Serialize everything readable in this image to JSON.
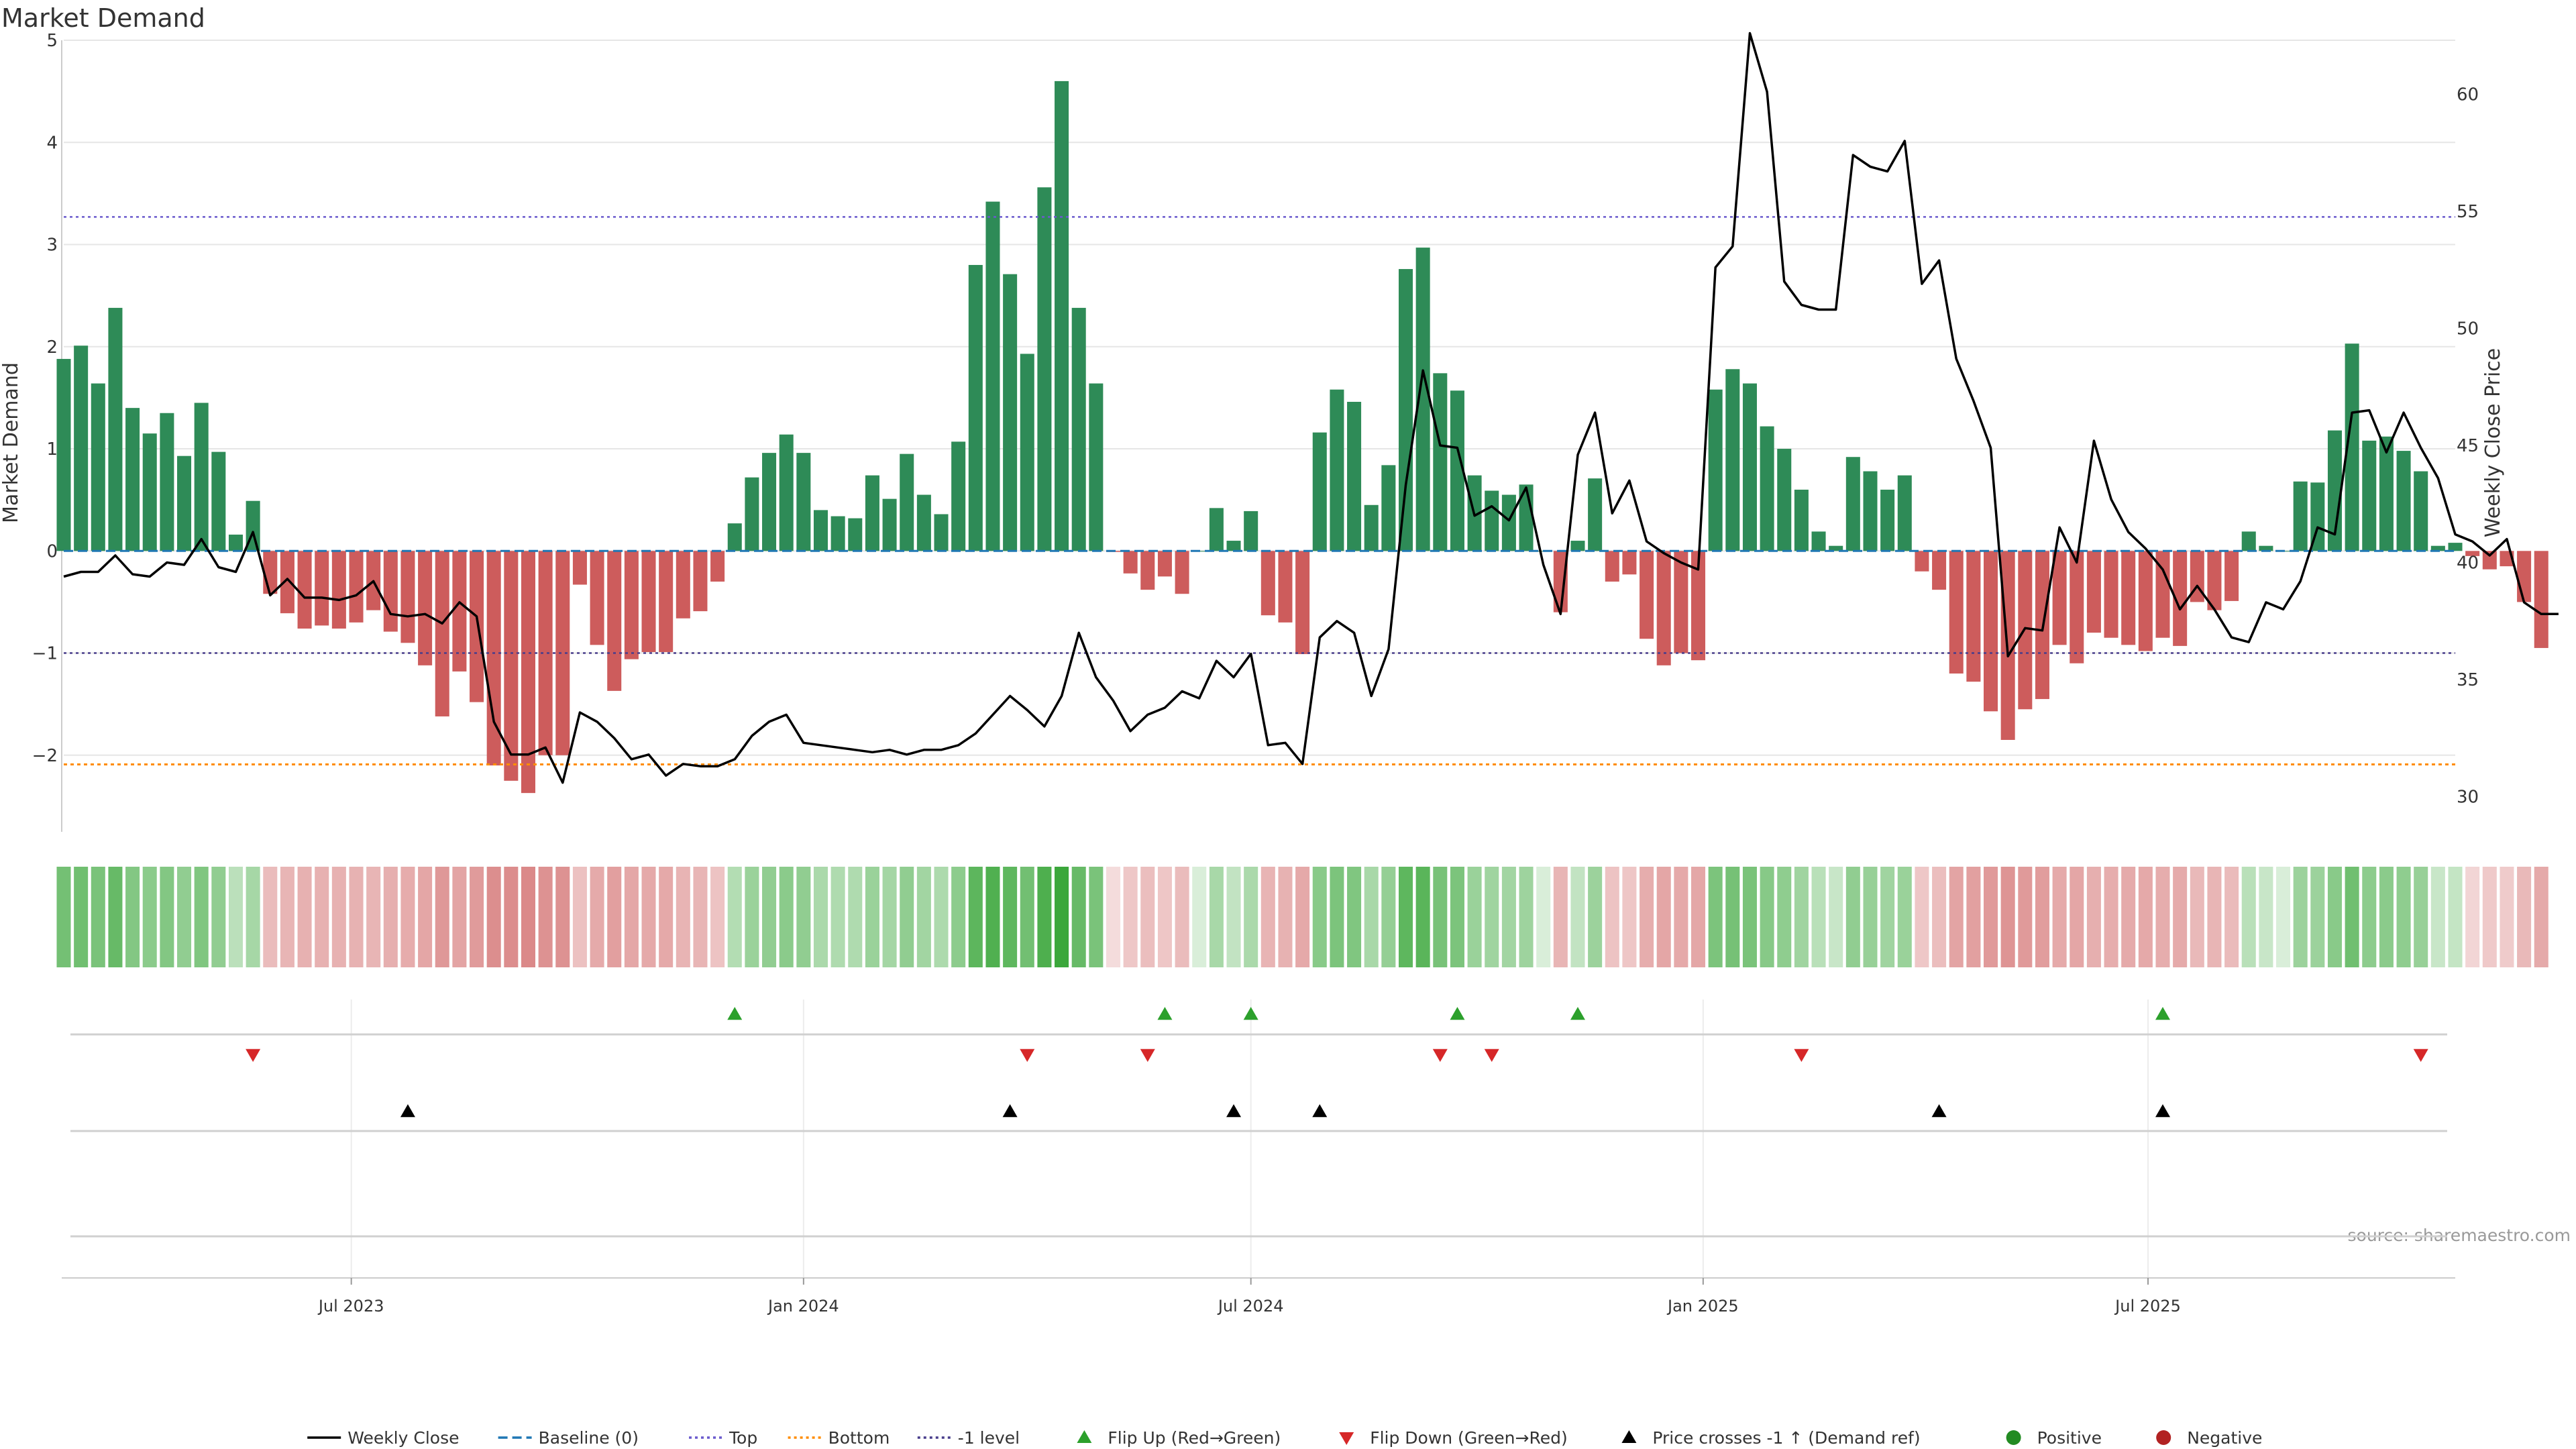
{
  "title": "Market Demand",
  "source": "source: sharemaestro.com",
  "colors": {
    "positive_bar": "#2e8b57",
    "negative_bar": "#cd5c5c",
    "price_line": "#000000",
    "top_line": "#6a5acd",
    "bottom_line": "#ff8c00",
    "minus1_line": "#483d8b",
    "baseline": "#1f77b4",
    "flip_up": "#2ca02c",
    "flip_down": "#d62728",
    "cross": "#000000",
    "grid": "#e6e6e6"
  },
  "chart_data": {
    "type": "bar",
    "title": "Market Demand",
    "ylabel": "Market Demand",
    "y2label": "Weekly Close Price",
    "ylim": [
      -2.75,
      5
    ],
    "y2lim": [
      28.5,
      62.3
    ],
    "yticks": [
      5,
      4,
      3,
      2,
      1,
      0,
      -1,
      -2
    ],
    "ytick_labels": [
      "5",
      "4",
      "3",
      "2",
      "1",
      "0",
      "−1",
      "−2"
    ],
    "y2ticks": [
      60,
      55,
      50,
      45,
      40,
      35,
      30
    ],
    "x_range": [
      "2023-03-06",
      "2025-11-03"
    ],
    "xticks": [
      {
        "date": "2023-07-01",
        "label": "Jul 2023"
      },
      {
        "date": "2024-01-01",
        "label": "Jan 2024"
      },
      {
        "date": "2024-07-01",
        "label": "Jul 2024"
      },
      {
        "date": "2025-01-01",
        "label": "Jan 2025"
      },
      {
        "date": "2025-07-01",
        "label": "Jul 2025"
      }
    ],
    "reference_lines": {
      "top": 3.27,
      "bottom": -2.09,
      "minus1": -1.0,
      "baseline": 0
    },
    "start_week": "2023-03-06",
    "demand": [
      1.88,
      2.01,
      1.64,
      2.38,
      1.4,
      1.15,
      1.35,
      0.93,
      1.45,
      0.97,
      0.16,
      0.49,
      -0.42,
      -0.61,
      -0.76,
      -0.73,
      -0.76,
      -0.7,
      -0.58,
      -0.79,
      -0.9,
      -1.12,
      -1.62,
      -1.18,
      -1.48,
      -2.1,
      -2.25,
      -2.37,
      -2.0,
      -2.0,
      -0.33,
      -0.92,
      -1.37,
      -1.06,
      -0.99,
      -0.99,
      -0.66,
      -0.59,
      -0.3,
      0.27,
      0.72,
      0.96,
      1.14,
      0.96,
      0.4,
      0.34,
      0.32,
      0.74,
      0.51,
      0.95,
      0.55,
      0.36,
      1.07,
      2.8,
      3.42,
      2.71,
      1.93,
      3.56,
      4.6,
      2.38,
      1.64,
      -0.01,
      -0.22,
      -0.38,
      -0.25,
      -0.42,
      0.0,
      0.42,
      0.1,
      0.39,
      -0.63,
      -0.7,
      -1.01,
      1.16,
      1.58,
      1.46,
      0.45,
      0.84,
      2.76,
      2.97,
      1.74,
      1.57,
      0.74,
      0.59,
      0.55,
      0.65,
      0.0,
      -0.6,
      0.1,
      0.71,
      -0.3,
      -0.23,
      -0.86,
      -1.12,
      -1.0,
      -1.07,
      1.58,
      1.78,
      1.64,
      1.22,
      1.0,
      0.6,
      0.19,
      0.05,
      0.92,
      0.78,
      0.6,
      0.74,
      -0.2,
      -0.38,
      -1.2,
      -1.28,
      -1.57,
      -1.85,
      -1.55,
      -1.45,
      -0.92,
      -1.1,
      -0.8,
      -0.85,
      -0.92,
      -0.98,
      -0.85,
      -0.93,
      -0.5,
      -0.58,
      -0.49,
      0.19,
      0.05,
      0.0,
      0.68,
      0.67,
      1.18,
      2.03,
      1.08,
      1.12,
      0.98,
      0.78,
      0.05,
      0.08,
      -0.05,
      -0.18,
      -0.15,
      -0.5,
      -0.95
    ],
    "price": [
      39.4,
      39.6,
      39.6,
      40.3,
      39.5,
      39.4,
      40.0,
      39.9,
      41.0,
      39.8,
      39.6,
      41.3,
      38.6,
      39.3,
      38.5,
      38.5,
      38.4,
      38.6,
      39.2,
      37.8,
      37.7,
      37.8,
      37.4,
      38.3,
      37.7,
      33.2,
      31.8,
      31.8,
      32.1,
      30.6,
      33.6,
      33.2,
      32.5,
      31.6,
      31.8,
      30.9,
      31.4,
      31.3,
      31.3,
      31.6,
      32.6,
      33.2,
      33.5,
      32.3,
      32.2,
      32.1,
      32.0,
      31.9,
      32.0,
      31.8,
      32.0,
      32.0,
      32.2,
      32.7,
      33.5,
      34.3,
      33.7,
      33.0,
      34.3,
      37.0,
      35.1,
      34.1,
      32.8,
      33.5,
      33.8,
      34.5,
      34.2,
      35.8,
      35.1,
      36.1,
      32.2,
      32.3,
      31.4,
      36.8,
      37.5,
      37.0,
      34.3,
      36.3,
      43.3,
      48.2,
      45.0,
      44.9,
      42.0,
      42.4,
      41.8,
      43.2,
      39.9,
      37.8,
      44.6,
      46.4,
      42.1,
      43.5,
      40.9,
      40.4,
      40.0,
      39.7,
      52.6,
      53.5,
      62.6,
      60.1,
      52.0,
      51.0,
      50.8,
      50.8,
      57.4,
      56.9,
      56.7,
      58.0,
      51.9,
      52.9,
      48.7,
      46.9,
      44.9,
      36.0,
      37.2,
      37.1,
      41.5,
      40.0,
      45.2,
      42.7,
      41.3,
      40.6,
      39.7,
      38.0,
      39.0,
      38.0,
      36.8,
      36.6,
      38.3,
      38.0,
      39.2,
      41.5,
      41.2,
      46.4,
      46.5,
      44.7,
      46.4,
      44.9,
      43.6,
      41.2,
      40.9,
      40.3,
      41.0,
      38.3,
      37.8,
      37.8
    ],
    "flip_up_dates": [
      "2023-12-04",
      "2024-05-27",
      "2024-07-01",
      "2024-09-23",
      "2024-11-11",
      "2025-07-07"
    ],
    "flip_down_dates": [
      "2023-05-22",
      "2024-04-01",
      "2024-05-20",
      "2024-09-16",
      "2024-10-07",
      "2025-02-10",
      "2025-10-20"
    ],
    "cross_dates": [
      "2023-07-24",
      "2024-03-25",
      "2024-06-24",
      "2024-07-29",
      "2025-04-07",
      "2025-07-07"
    ],
    "legend": [
      {
        "type": "line",
        "label": "Weekly Close",
        "color": "#000000",
        "dash": ""
      },
      {
        "type": "line",
        "label": "Baseline (0)",
        "color": "#1f77b4",
        "dash": "14,7"
      },
      {
        "type": "line",
        "label": "Top",
        "color": "#6a5acd",
        "dash": "4,5"
      },
      {
        "type": "line",
        "label": "Bottom",
        "color": "#ff8c00",
        "dash": "4,5"
      },
      {
        "type": "line",
        "label": "-1 level",
        "color": "#483d8b",
        "dash": "4,5"
      },
      {
        "type": "tri-up",
        "label": "Flip Up (Red→Green)",
        "color": "#2ca02c"
      },
      {
        "type": "tri-down",
        "label": "Flip Down (Green→Red)",
        "color": "#d62728"
      },
      {
        "type": "tri-up",
        "label": "Price crosses -1 ↑ (Demand ref)",
        "color": "#000000"
      },
      {
        "type": "dot",
        "label": "Positive",
        "color": "#228b22"
      },
      {
        "type": "dot",
        "label": "Negative",
        "color": "#b22222"
      }
    ]
  }
}
